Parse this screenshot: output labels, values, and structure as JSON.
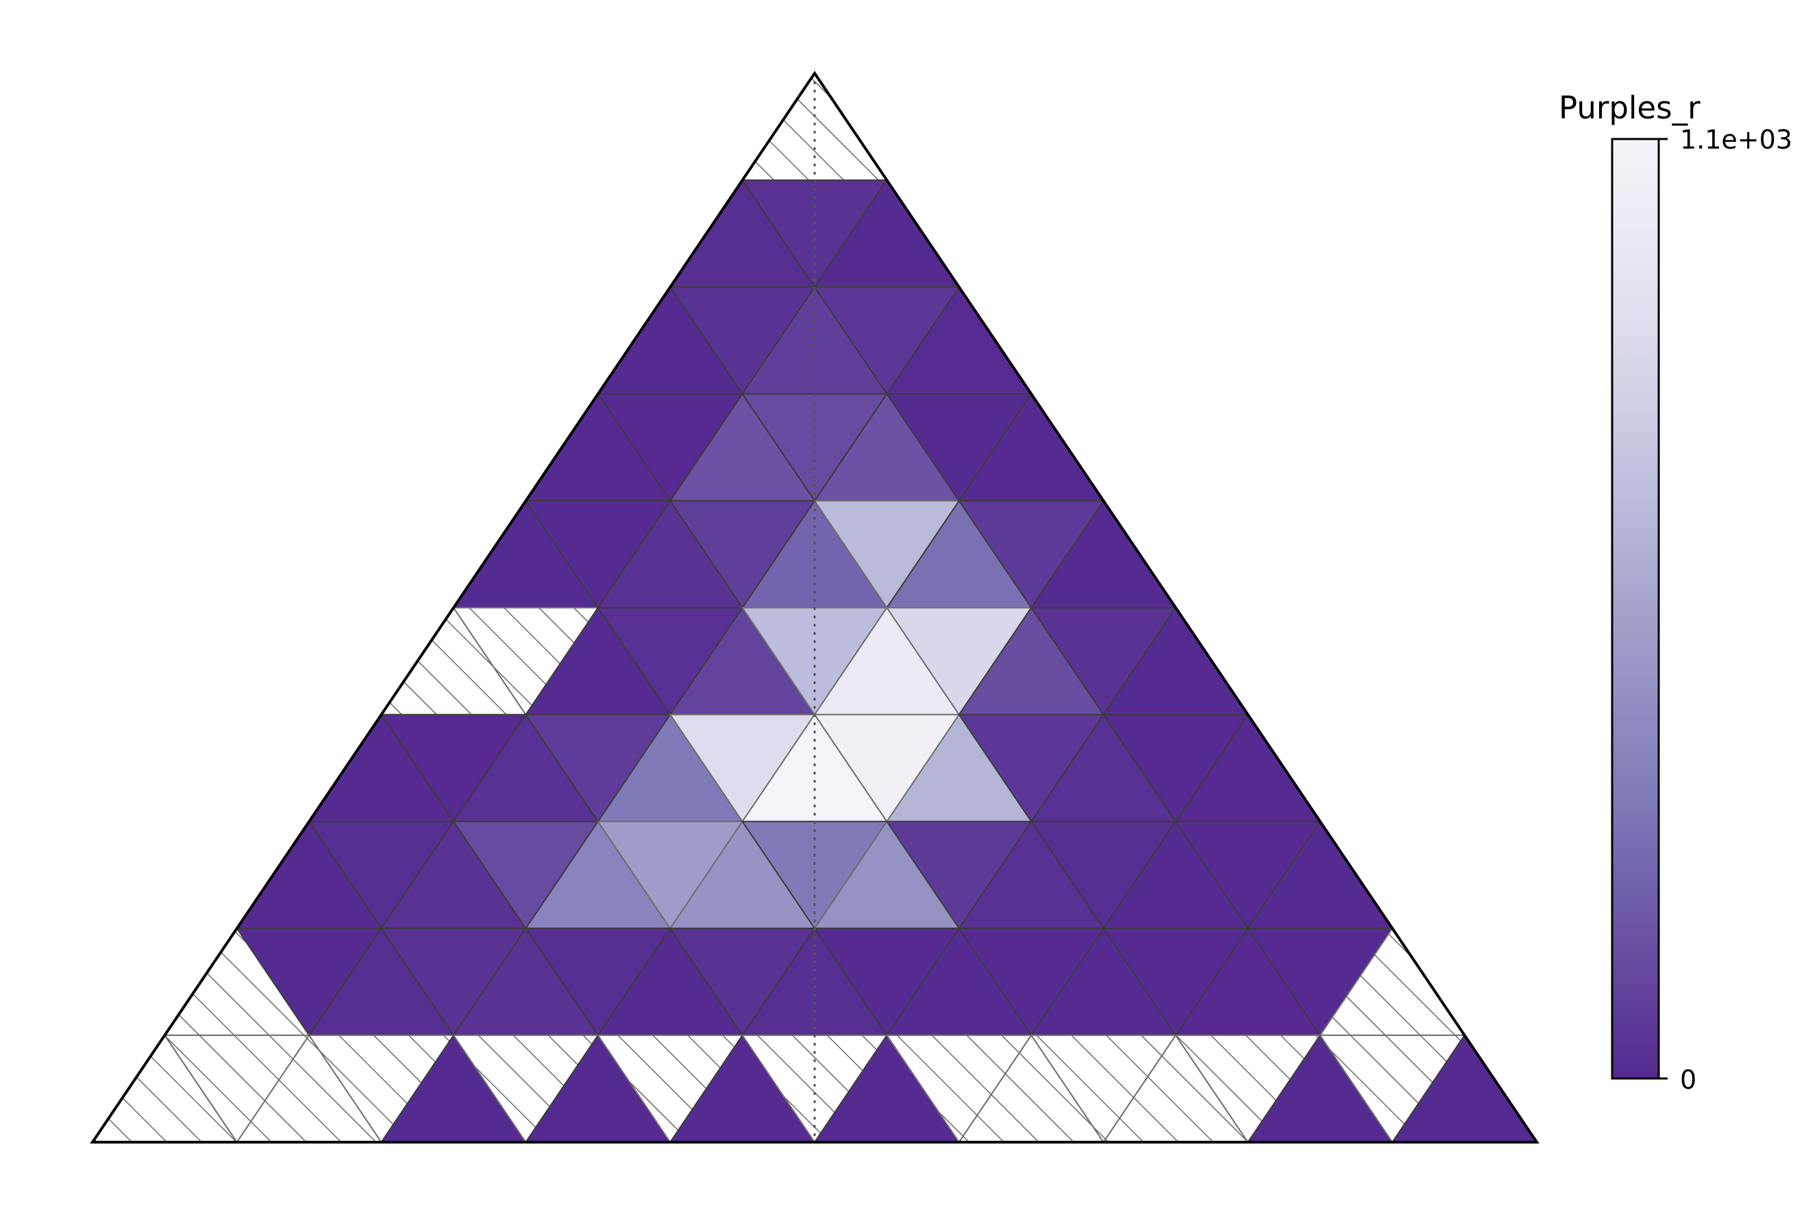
{
  "chart_data": {
    "type": "heatmap",
    "subtype": "ternary triangular heatmap",
    "colormap": "Purples_r",
    "colorbar": {
      "label": "Purples_r",
      "min_label": "0",
      "max_label": "1.1e+03",
      "vmin": 0,
      "vmax": 1100
    },
    "grid_rows": 10,
    "missing_style": "hatched",
    "note_values": "Row 0 is the apex, row 9 the base. Each row lists cell values from left to right, alternating upward and downward triangles. null = missing (hatched) cell.",
    "rows": [
      [
        null
      ],
      [
        20,
        40,
        10
      ],
      [
        10,
        40,
        90,
        60,
        15
      ],
      [
        10,
        5,
        170,
        140,
        170,
        10,
        10
      ],
      [
        10,
        10,
        40,
        90,
        240,
        670,
        290,
        70,
        10
      ],
      [
        null,
        null,
        10,
        30,
        110,
        680,
        1000,
        840,
        150,
        40,
        10
      ],
      [
        10,
        5,
        30,
        80,
        330,
        880,
        1100,
        1060,
        640,
        60,
        30,
        10,
        5
      ],
      [
        10,
        20,
        40,
        140,
        380,
        520,
        470,
        330,
        460,
        70,
        30,
        20,
        10,
        10,
        10
      ],
      [
        null,
        10,
        20,
        40,
        40,
        20,
        10,
        40,
        20,
        10,
        10,
        10,
        10,
        10,
        5,
        10,
        null
      ],
      [
        null,
        null,
        null,
        null,
        10,
        null,
        10,
        null,
        10,
        null,
        10,
        null,
        null,
        null,
        null,
        null,
        10,
        null,
        10
      ]
    ]
  }
}
